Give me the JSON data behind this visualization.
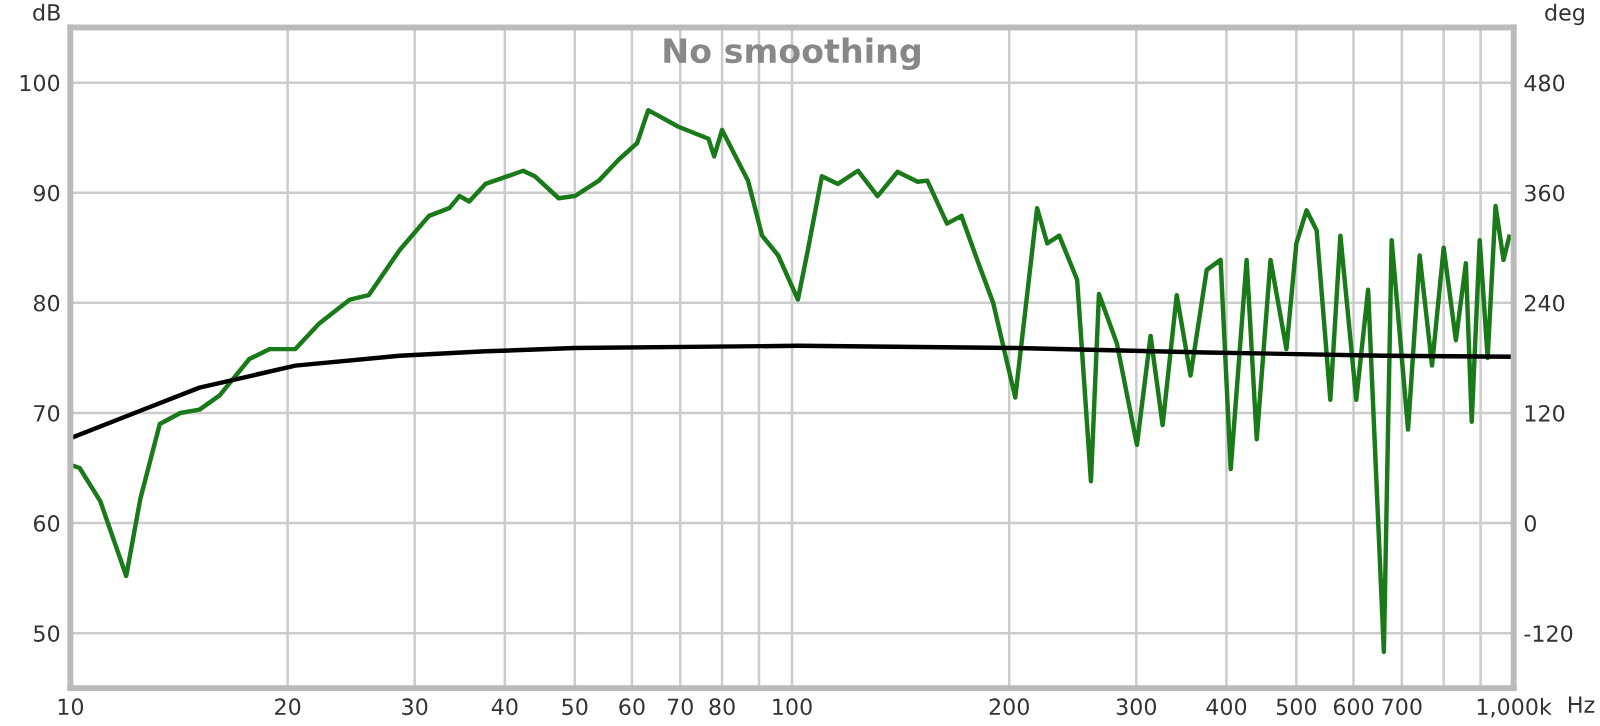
{
  "chart_data": {
    "type": "line",
    "title": "No smoothing",
    "ylabel": "dB",
    "y2label": "deg",
    "xlabel": "Hz",
    "log": "x",
    "xlim": [
      10,
      1000
    ],
    "xticks": [
      10,
      20,
      30,
      40,
      50,
      60,
      70,
      80,
      {
        "value": 90,
        "label": null
      },
      100,
      200,
      300,
      400,
      500,
      600,
      700,
      {
        "value": 800,
        "label": null
      },
      {
        "value": 900,
        "label": null
      },
      {
        "value": 1000,
        "label": "1,000k"
      }
    ],
    "ylim": [
      45,
      105
    ],
    "yticks": [
      50,
      60,
      70,
      80,
      90,
      100
    ],
    "y2lim": [
      -180,
      540
    ],
    "y2ticks": [
      -120,
      0,
      120,
      240,
      360,
      480
    ],
    "grid": true,
    "legend": false,
    "series": [
      {
        "color": "#1a7a1a",
        "x": [
          10,
          10.3,
          11,
          11.95,
          12.5,
          13.3,
          14.2,
          15.1,
          16.1,
          17.7,
          18.9,
          20.5,
          22.1,
          24.4,
          25.9,
          28.6,
          31.4,
          33.5,
          34.6,
          35.7,
          37.6,
          42.4,
          44,
          47.5,
          50,
          54,
          57.5,
          61,
          63.2,
          69.6,
          76.6,
          78,
          80,
          86.9,
          90.9,
          95.7,
          101.9,
          105.2,
          110,
          115.8,
          123.4,
          131.4,
          140,
          149.3,
          154,
          164,
          171.7,
          180.6,
          190,
          203.9,
          218.6,
          225.8,
          234.6,
          248.4,
          259.6,
          266.3,
          282,
          300.6,
          314,
          326.3,
          341.3,
          356.7,
          375.6,
          392.6,
          405.5,
          426.6,
          440.6,
          460.4,
          484.4,
          500,
          516.4,
          533.4,
          557.2,
          575.4,
          605.3,
          628.6,
          644.4,
          661,
          677.6,
          714,
          741,
          770.8,
          800,
          831.8,
          858.7,
          874.9,
          897.5,
          920.5,
          944.1,
          968.3,
          986.3
        ],
        "values": [
          65.3,
          65,
          62,
          55.2,
          62.2,
          69,
          70,
          70.3,
          71.6,
          74.9,
          75.8,
          75.8,
          78.1,
          80.3,
          80.7,
          84.8,
          87.9,
          88.6,
          89.7,
          89.2,
          90.8,
          92,
          91.5,
          89.5,
          89.7,
          91.1,
          93,
          94.5,
          97.5,
          96,
          94.9,
          93.3,
          95.7,
          91.1,
          86.1,
          84.3,
          80.3,
          84.8,
          91.5,
          90.8,
          92,
          89.7,
          91.9,
          91,
          91.1,
          87.2,
          87.9,
          83.9,
          80,
          71.4,
          88.6,
          85.4,
          86.1,
          82.1,
          63.8,
          80.8,
          76.3,
          67.1,
          77,
          68.9,
          80.7,
          73.4,
          83,
          83.9,
          64.9,
          83.9,
          67.6,
          83.9,
          75.8,
          85.4,
          88.4,
          86.6,
          71.2,
          86.1,
          71.2,
          81.2,
          64.9,
          48.3,
          85.7,
          68.5,
          84.3,
          74.3,
          85,
          76.6,
          83.6,
          69.2,
          85.7,
          75,
          88.8,
          83.9,
          86
        ]
      },
      {
        "color": "#000000",
        "x": [
          10,
          12.5,
          15.1,
          20.5,
          28.6,
          37.6,
          50,
          101.9,
          204,
          375,
          661,
          1000
        ],
        "values": [
          67.7,
          70.2,
          72.3,
          74.3,
          75.2,
          75.6,
          75.9,
          76.1,
          75.9,
          75.5,
          75.2,
          75.1
        ]
      }
    ]
  }
}
